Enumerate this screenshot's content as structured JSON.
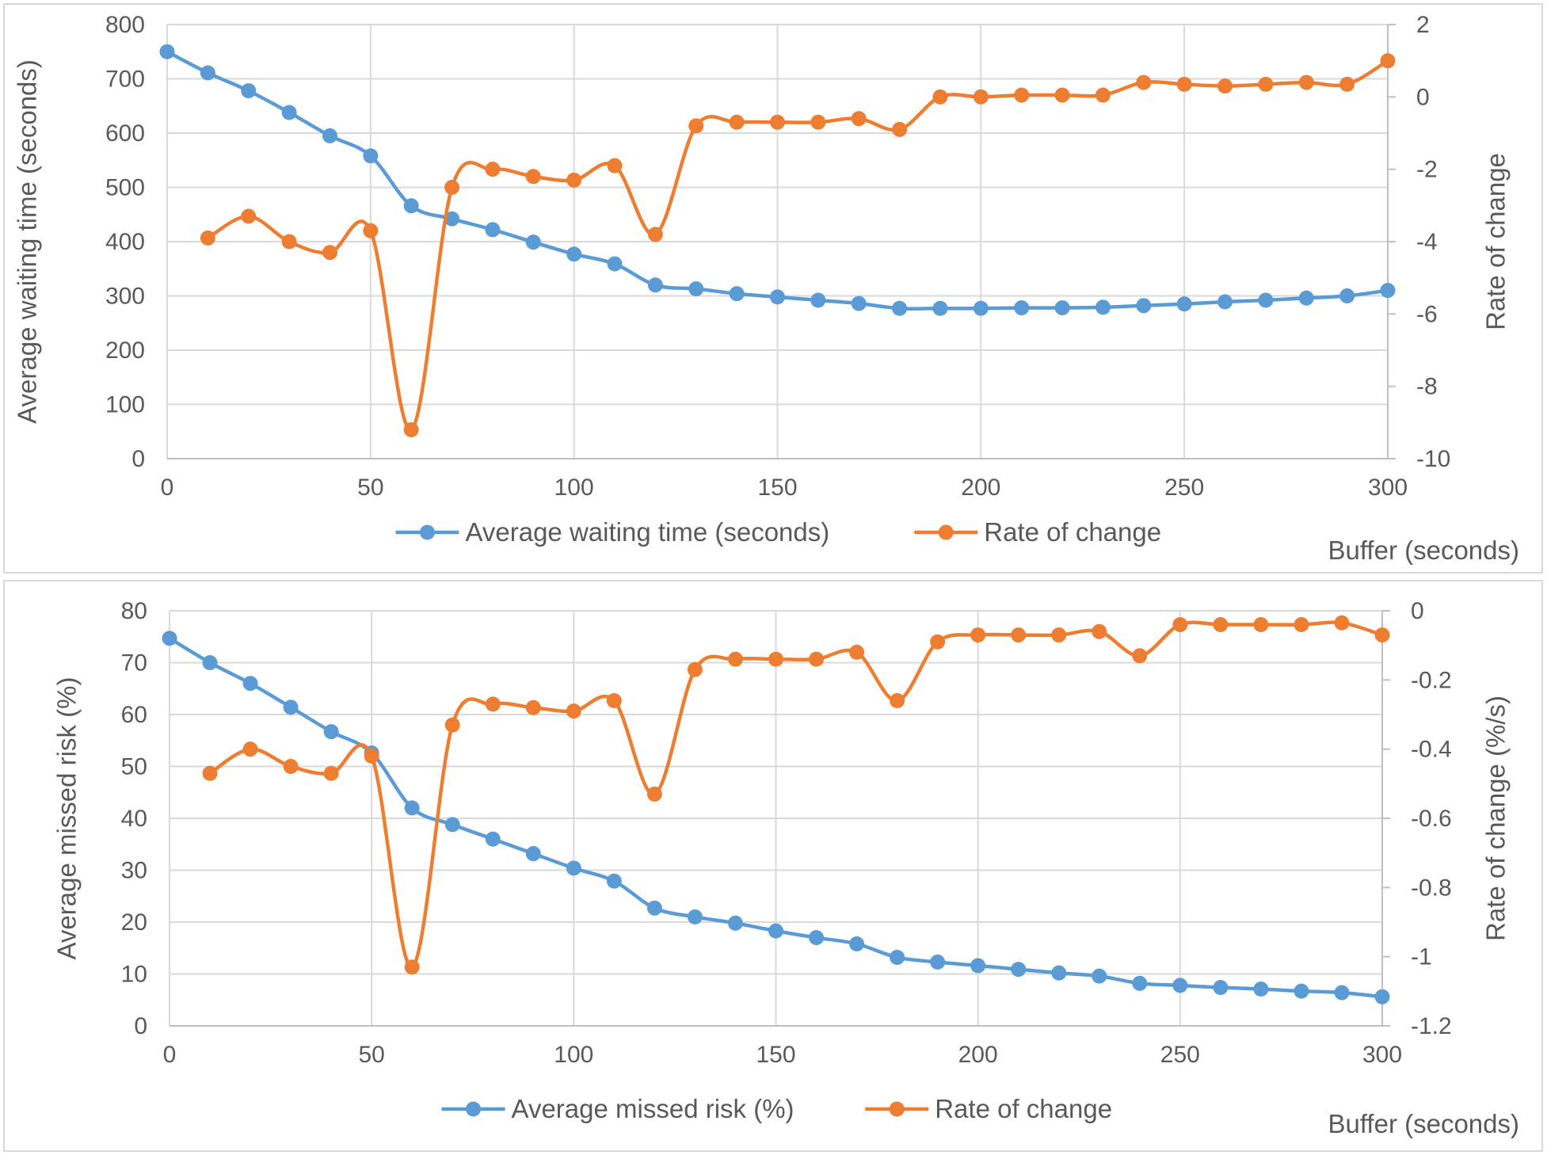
{
  "chart_data": [
    {
      "type": "line",
      "xlabel": "Buffer (seconds)",
      "ylabel": "Average waiting time (seconds)",
      "y2label": "Rate of change",
      "xlim": [
        0,
        300
      ],
      "ylim": [
        0,
        800
      ],
      "y2lim": [
        -10,
        2
      ],
      "x_ticks": [
        "0",
        "50",
        "100",
        "150",
        "200",
        "250",
        "300"
      ],
      "y_ticks": [
        "0",
        "100",
        "200",
        "300",
        "400",
        "500",
        "600",
        "700",
        "800"
      ],
      "y2_ticks": [
        "-10",
        "-8",
        "-6",
        "-4",
        "-2",
        "0",
        "2"
      ],
      "grid": true,
      "legend_position": "bottom",
      "series": [
        {
          "name": "Average waiting time (seconds)",
          "axis": "left",
          "color": "#5B9BD5",
          "x": [
            0,
            10,
            20,
            30,
            40,
            50,
            60,
            70,
            80,
            90,
            100,
            110,
            120,
            130,
            140,
            150,
            160,
            170,
            180,
            190,
            200,
            210,
            220,
            230,
            240,
            250,
            260,
            270,
            280,
            290,
            300
          ],
          "values": [
            750,
            711,
            678,
            638,
            595,
            558,
            466,
            442,
            422,
            399,
            377,
            359,
            320,
            313,
            304,
            298,
            292,
            286,
            277,
            277,
            277,
            278,
            278,
            279,
            282,
            285,
            289,
            292,
            296,
            300,
            310
          ]
        },
        {
          "name": "Rate of change",
          "axis": "right",
          "color": "#ED7D31",
          "x": [
            10,
            20,
            30,
            40,
            50,
            60,
            70,
            80,
            90,
            100,
            110,
            120,
            130,
            140,
            150,
            160,
            170,
            180,
            190,
            200,
            210,
            220,
            230,
            240,
            250,
            260,
            270,
            280,
            290,
            300
          ],
          "values": [
            -3.9,
            -3.3,
            -4.0,
            -4.3,
            -3.7,
            -9.2,
            -2.5,
            -2.0,
            -2.2,
            -2.3,
            -1.9,
            -3.8,
            -0.8,
            -0.7,
            -0.7,
            -0.7,
            -0.6,
            -0.9,
            0.0,
            0.0,
            0.05,
            0.05,
            0.05,
            0.4,
            0.35,
            0.3,
            0.35,
            0.4,
            0.35,
            1.0
          ]
        }
      ]
    },
    {
      "type": "line",
      "xlabel": "Buffer (seconds)",
      "ylabel": "Average missed risk (%)",
      "y2label": "Rate of change (%/s)",
      "xlim": [
        0,
        300
      ],
      "ylim": [
        0,
        80
      ],
      "y2lim": [
        -1.2,
        0
      ],
      "x_ticks": [
        "0",
        "50",
        "100",
        "150",
        "200",
        "250",
        "300"
      ],
      "y_ticks": [
        "0",
        "10",
        "20",
        "30",
        "40",
        "50",
        "60",
        "70",
        "80"
      ],
      "y2_ticks": [
        "-1.2",
        "-1",
        "-0.8",
        "-0.6",
        "-0.4",
        "-0.2",
        "0"
      ],
      "grid": true,
      "legend_position": "bottom",
      "series": [
        {
          "name": "Average missed risk (%)",
          "axis": "left",
          "color": "#5B9BD5",
          "x": [
            0,
            10,
            20,
            30,
            40,
            50,
            60,
            70,
            80,
            90,
            100,
            110,
            120,
            130,
            140,
            150,
            160,
            170,
            180,
            190,
            200,
            210,
            220,
            230,
            240,
            250,
            260,
            270,
            280,
            290,
            300
          ],
          "values": [
            74.7,
            70.0,
            66.0,
            61.4,
            56.7,
            52.6,
            42.0,
            38.8,
            36.0,
            33.2,
            30.4,
            27.9,
            22.7,
            21.0,
            19.8,
            18.3,
            17.0,
            15.8,
            13.2,
            12.3,
            11.6,
            10.9,
            10.2,
            9.6,
            8.2,
            7.8,
            7.4,
            7.1,
            6.7,
            6.4,
            5.6
          ]
        },
        {
          "name": "Rate of change",
          "axis": "right",
          "color": "#ED7D31",
          "x": [
            10,
            20,
            30,
            40,
            50,
            60,
            70,
            80,
            90,
            100,
            110,
            120,
            130,
            140,
            150,
            160,
            170,
            180,
            190,
            200,
            210,
            220,
            230,
            240,
            250,
            260,
            270,
            280,
            290,
            300
          ],
          "values": [
            -0.47,
            -0.4,
            -0.45,
            -0.47,
            -0.42,
            -1.03,
            -0.33,
            -0.27,
            -0.28,
            -0.29,
            -0.26,
            -0.53,
            -0.17,
            -0.14,
            -0.14,
            -0.14,
            -0.12,
            -0.26,
            -0.09,
            -0.07,
            -0.07,
            -0.07,
            -0.06,
            -0.13,
            -0.04,
            -0.04,
            -0.04,
            -0.04,
            -0.035,
            -0.07
          ]
        }
      ]
    }
  ]
}
